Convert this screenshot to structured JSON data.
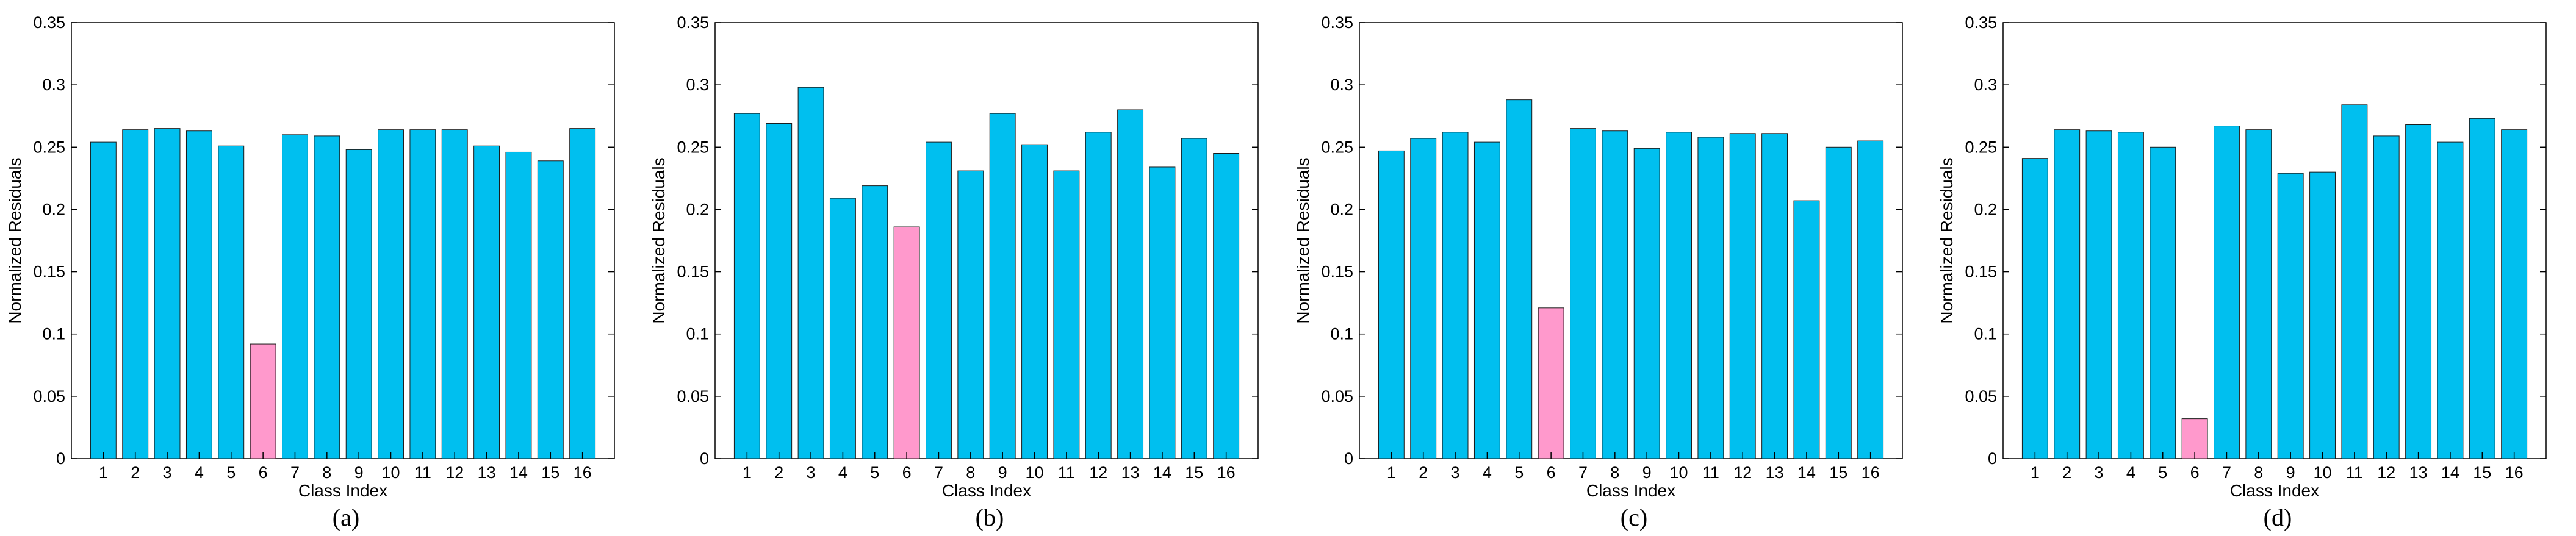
{
  "chart_data": [
    {
      "type": "bar",
      "caption": "(a)",
      "xlabel": "Class Index",
      "ylabel": "Normalized Residuals",
      "ylim": [
        0,
        0.35
      ],
      "yticks": [
        "0",
        "0.05",
        "0.1",
        "0.15",
        "0.2",
        "0.25",
        "0.3",
        "0.35"
      ],
      "categories": [
        "1",
        "2",
        "3",
        "4",
        "5",
        "6",
        "7",
        "8",
        "9",
        "10",
        "11",
        "12",
        "13",
        "14",
        "15",
        "16"
      ],
      "values": [
        0.254,
        0.264,
        0.265,
        0.263,
        0.251,
        0.092,
        0.26,
        0.259,
        0.248,
        0.264,
        0.264,
        0.264,
        0.251,
        0.246,
        0.239,
        0.265
      ],
      "highlight_index": 5
    },
    {
      "type": "bar",
      "caption": "(b)",
      "xlabel": "Class Index",
      "ylabel": "Normalized Residuals",
      "ylim": [
        0,
        0.35
      ],
      "yticks": [
        "0",
        "0.05",
        "0.1",
        "0.15",
        "0.2",
        "0.25",
        "0.3",
        "0.35"
      ],
      "categories": [
        "1",
        "2",
        "3",
        "4",
        "5",
        "6",
        "7",
        "8",
        "9",
        "10",
        "11",
        "12",
        "13",
        "14",
        "15",
        "16"
      ],
      "values": [
        0.277,
        0.269,
        0.298,
        0.209,
        0.219,
        0.186,
        0.254,
        0.231,
        0.277,
        0.252,
        0.231,
        0.262,
        0.28,
        0.234,
        0.257,
        0.245
      ],
      "highlight_index": 5
    },
    {
      "type": "bar",
      "caption": "(c)",
      "xlabel": "Class Index",
      "ylabel": "Normalized Residuals",
      "ylim": [
        0,
        0.35
      ],
      "yticks": [
        "0",
        "0.05",
        "0.1",
        "0.15",
        "0.2",
        "0.25",
        "0.3",
        "0.35"
      ],
      "categories": [
        "1",
        "2",
        "3",
        "4",
        "5",
        "6",
        "7",
        "8",
        "9",
        "10",
        "11",
        "12",
        "13",
        "14",
        "15",
        "16"
      ],
      "values": [
        0.247,
        0.257,
        0.262,
        0.254,
        0.288,
        0.121,
        0.265,
        0.263,
        0.249,
        0.262,
        0.258,
        0.261,
        0.261,
        0.207,
        0.25,
        0.255
      ],
      "highlight_index": 5
    },
    {
      "type": "bar",
      "caption": "(d)",
      "xlabel": "Class Index",
      "ylabel": "Normalized Residuals",
      "ylim": [
        0,
        0.35
      ],
      "yticks": [
        "0",
        "0.05",
        "0.1",
        "0.15",
        "0.2",
        "0.25",
        "0.3",
        "0.35"
      ],
      "categories": [
        "1",
        "2",
        "3",
        "4",
        "5",
        "6",
        "7",
        "8",
        "9",
        "10",
        "11",
        "12",
        "13",
        "14",
        "15",
        "16"
      ],
      "values": [
        0.241,
        0.264,
        0.263,
        0.262,
        0.25,
        0.032,
        0.267,
        0.264,
        0.229,
        0.23,
        0.284,
        0.259,
        0.268,
        0.254,
        0.273,
        0.264
      ],
      "highlight_index": 5
    }
  ],
  "colors": {
    "bar_fill": "#00BFEF",
    "highlight_fill": "#FF99CC",
    "bar_stroke": "#1a1a1a",
    "axis": "#000000"
  }
}
